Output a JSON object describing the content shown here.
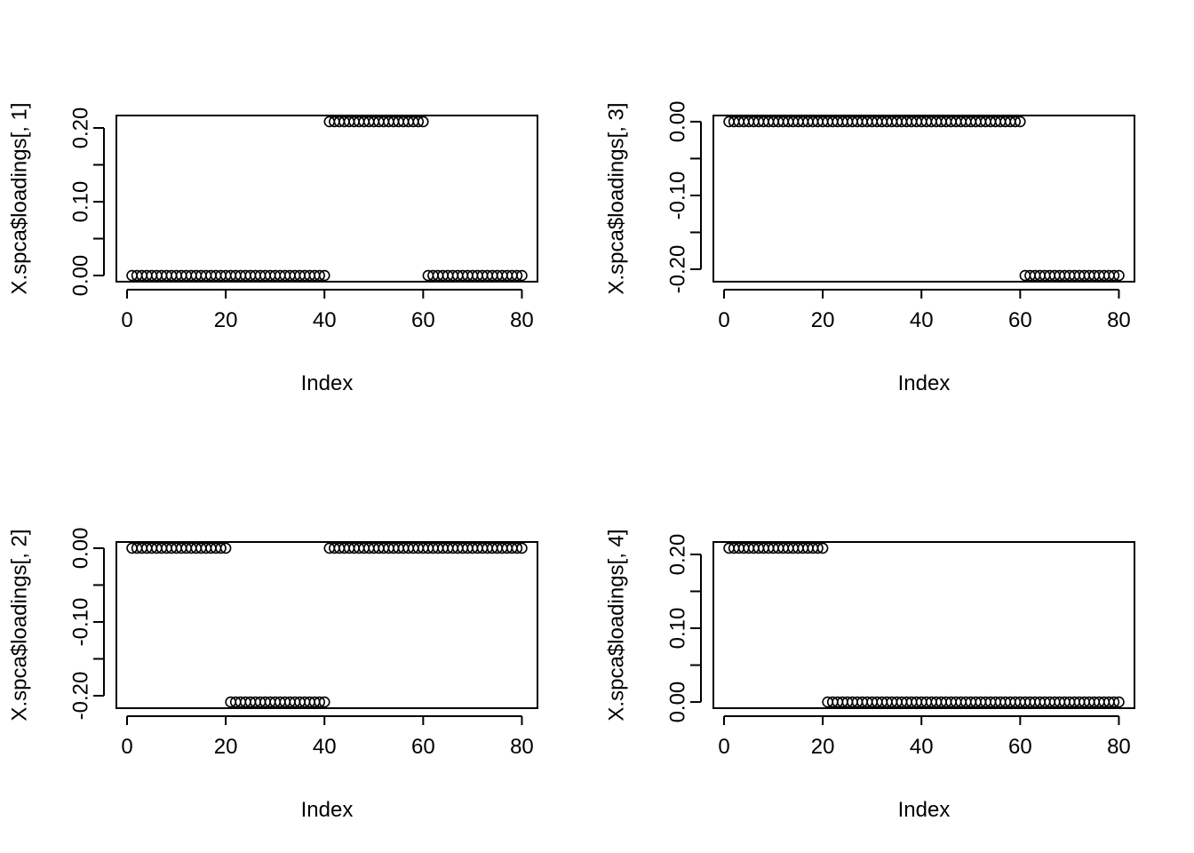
{
  "chart_data": [
    {
      "type": "scatter",
      "xlabel": "Index",
      "ylabel": "X.spca$loadings[, 1]",
      "xlim": [
        1,
        80
      ],
      "ylim": [
        0,
        0.2085
      ],
      "xticks": [
        0,
        20,
        40,
        60,
        80
      ],
      "xtick_labels": [
        "0",
        "20",
        "40",
        "60",
        "80"
      ],
      "yticks": [
        0,
        0.05,
        0.1,
        0.15,
        0.2
      ],
      "ytick_labels": [
        "0.00",
        "",
        "0.10",
        "",
        "0.20"
      ],
      "segments": [
        {
          "from": 1,
          "to": 40,
          "y": 0
        },
        {
          "from": 41,
          "to": 60,
          "y": 0.2085
        },
        {
          "from": 61,
          "to": 80,
          "y": 0
        }
      ]
    },
    {
      "type": "scatter",
      "xlabel": "Index",
      "ylabel": "X.spca$loadings[, 3]",
      "xlim": [
        1,
        80
      ],
      "ylim": [
        -0.2085,
        0
      ],
      "xticks": [
        0,
        20,
        40,
        60,
        80
      ],
      "xtick_labels": [
        "0",
        "20",
        "40",
        "60",
        "80"
      ],
      "yticks": [
        -0.2,
        -0.15,
        -0.1,
        -0.05,
        0
      ],
      "ytick_labels": [
        "-0.20",
        "",
        "-0.10",
        "",
        "0.00"
      ],
      "segments": [
        {
          "from": 1,
          "to": 60,
          "y": 0
        },
        {
          "from": 61,
          "to": 80,
          "y": -0.2085
        }
      ]
    },
    {
      "type": "scatter",
      "xlabel": "Index",
      "ylabel": "X.spca$loadings[, 2]",
      "xlim": [
        1,
        80
      ],
      "ylim": [
        -0.2085,
        0
      ],
      "xticks": [
        0,
        20,
        40,
        60,
        80
      ],
      "xtick_labels": [
        "0",
        "20",
        "40",
        "60",
        "80"
      ],
      "yticks": [
        -0.2,
        -0.15,
        -0.1,
        -0.05,
        0
      ],
      "ytick_labels": [
        "-0.20",
        "",
        "-0.10",
        "",
        "0.00"
      ],
      "segments": [
        {
          "from": 1,
          "to": 20,
          "y": 0
        },
        {
          "from": 21,
          "to": 40,
          "y": -0.2085
        },
        {
          "from": 41,
          "to": 80,
          "y": 0
        }
      ]
    },
    {
      "type": "scatter",
      "xlabel": "Index",
      "ylabel": "X.spca$loadings[, 4]",
      "xlim": [
        1,
        80
      ],
      "ylim": [
        0,
        0.2085
      ],
      "xticks": [
        0,
        20,
        40,
        60,
        80
      ],
      "xtick_labels": [
        "0",
        "20",
        "40",
        "60",
        "80"
      ],
      "yticks": [
        0,
        0.05,
        0.1,
        0.15,
        0.2
      ],
      "ytick_labels": [
        "0.00",
        "",
        "0.10",
        "",
        "0.20"
      ],
      "segments": [
        {
          "from": 1,
          "to": 20,
          "y": 0.2085
        },
        {
          "from": 21,
          "to": 80,
          "y": 0
        }
      ]
    }
  ],
  "style": {
    "point_color": "#000000",
    "axis_color": "#000000",
    "background": "#ffffff"
  }
}
